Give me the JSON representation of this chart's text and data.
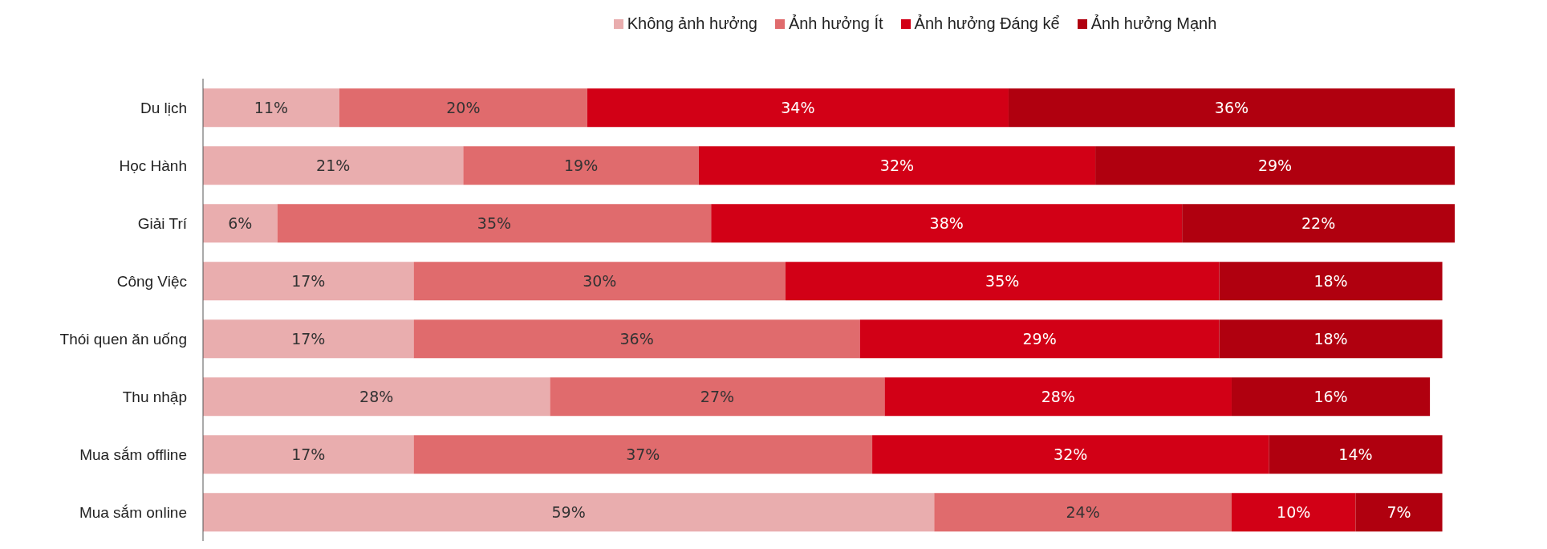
{
  "chart_data": {
    "type": "bar",
    "orientation": "horizontal",
    "stacked": true,
    "legend": "top",
    "categories": [
      "Du lịch",
      "Học Hành",
      "Giải Trí",
      "Công Việc",
      "Thói quen ăn uống",
      "Thu nhập",
      "Mua sắm offline",
      "Mua sắm online"
    ],
    "series": [
      {
        "name": "Không ảnh hưởng",
        "color": "#e9adae",
        "values": [
          11,
          21,
          6,
          17,
          17,
          28,
          17,
          59
        ],
        "value_labels": [
          "11%",
          "21%",
          "6%",
          "17%",
          "17%",
          "28%",
          "17%",
          "59%"
        ]
      },
      {
        "name": "Ảnh hưởng Ít",
        "color": "#e06b6d",
        "values": [
          20,
          19,
          35,
          30,
          36,
          27,
          37,
          24
        ],
        "value_labels": [
          "20%",
          "19%",
          "35%",
          "30%",
          "36%",
          "27%",
          "37%",
          "24%"
        ]
      },
      {
        "name": "Ảnh hưởng Đáng kể",
        "color": "#d20016",
        "values": [
          34,
          32,
          38,
          35,
          29,
          28,
          32,
          10
        ],
        "value_labels": [
          "34%",
          "32%",
          "38%",
          "35%",
          "29%",
          "28%",
          "32%",
          "10%"
        ]
      },
      {
        "name": "Ảnh hưởng Mạnh",
        "color": "#b0000f",
        "values": [
          36,
          29,
          22,
          18,
          18,
          16,
          14,
          7
        ],
        "value_labels": [
          "36%",
          "29%",
          "22%",
          "18%",
          "18%",
          "16%",
          "14%",
          "7%"
        ]
      }
    ]
  }
}
